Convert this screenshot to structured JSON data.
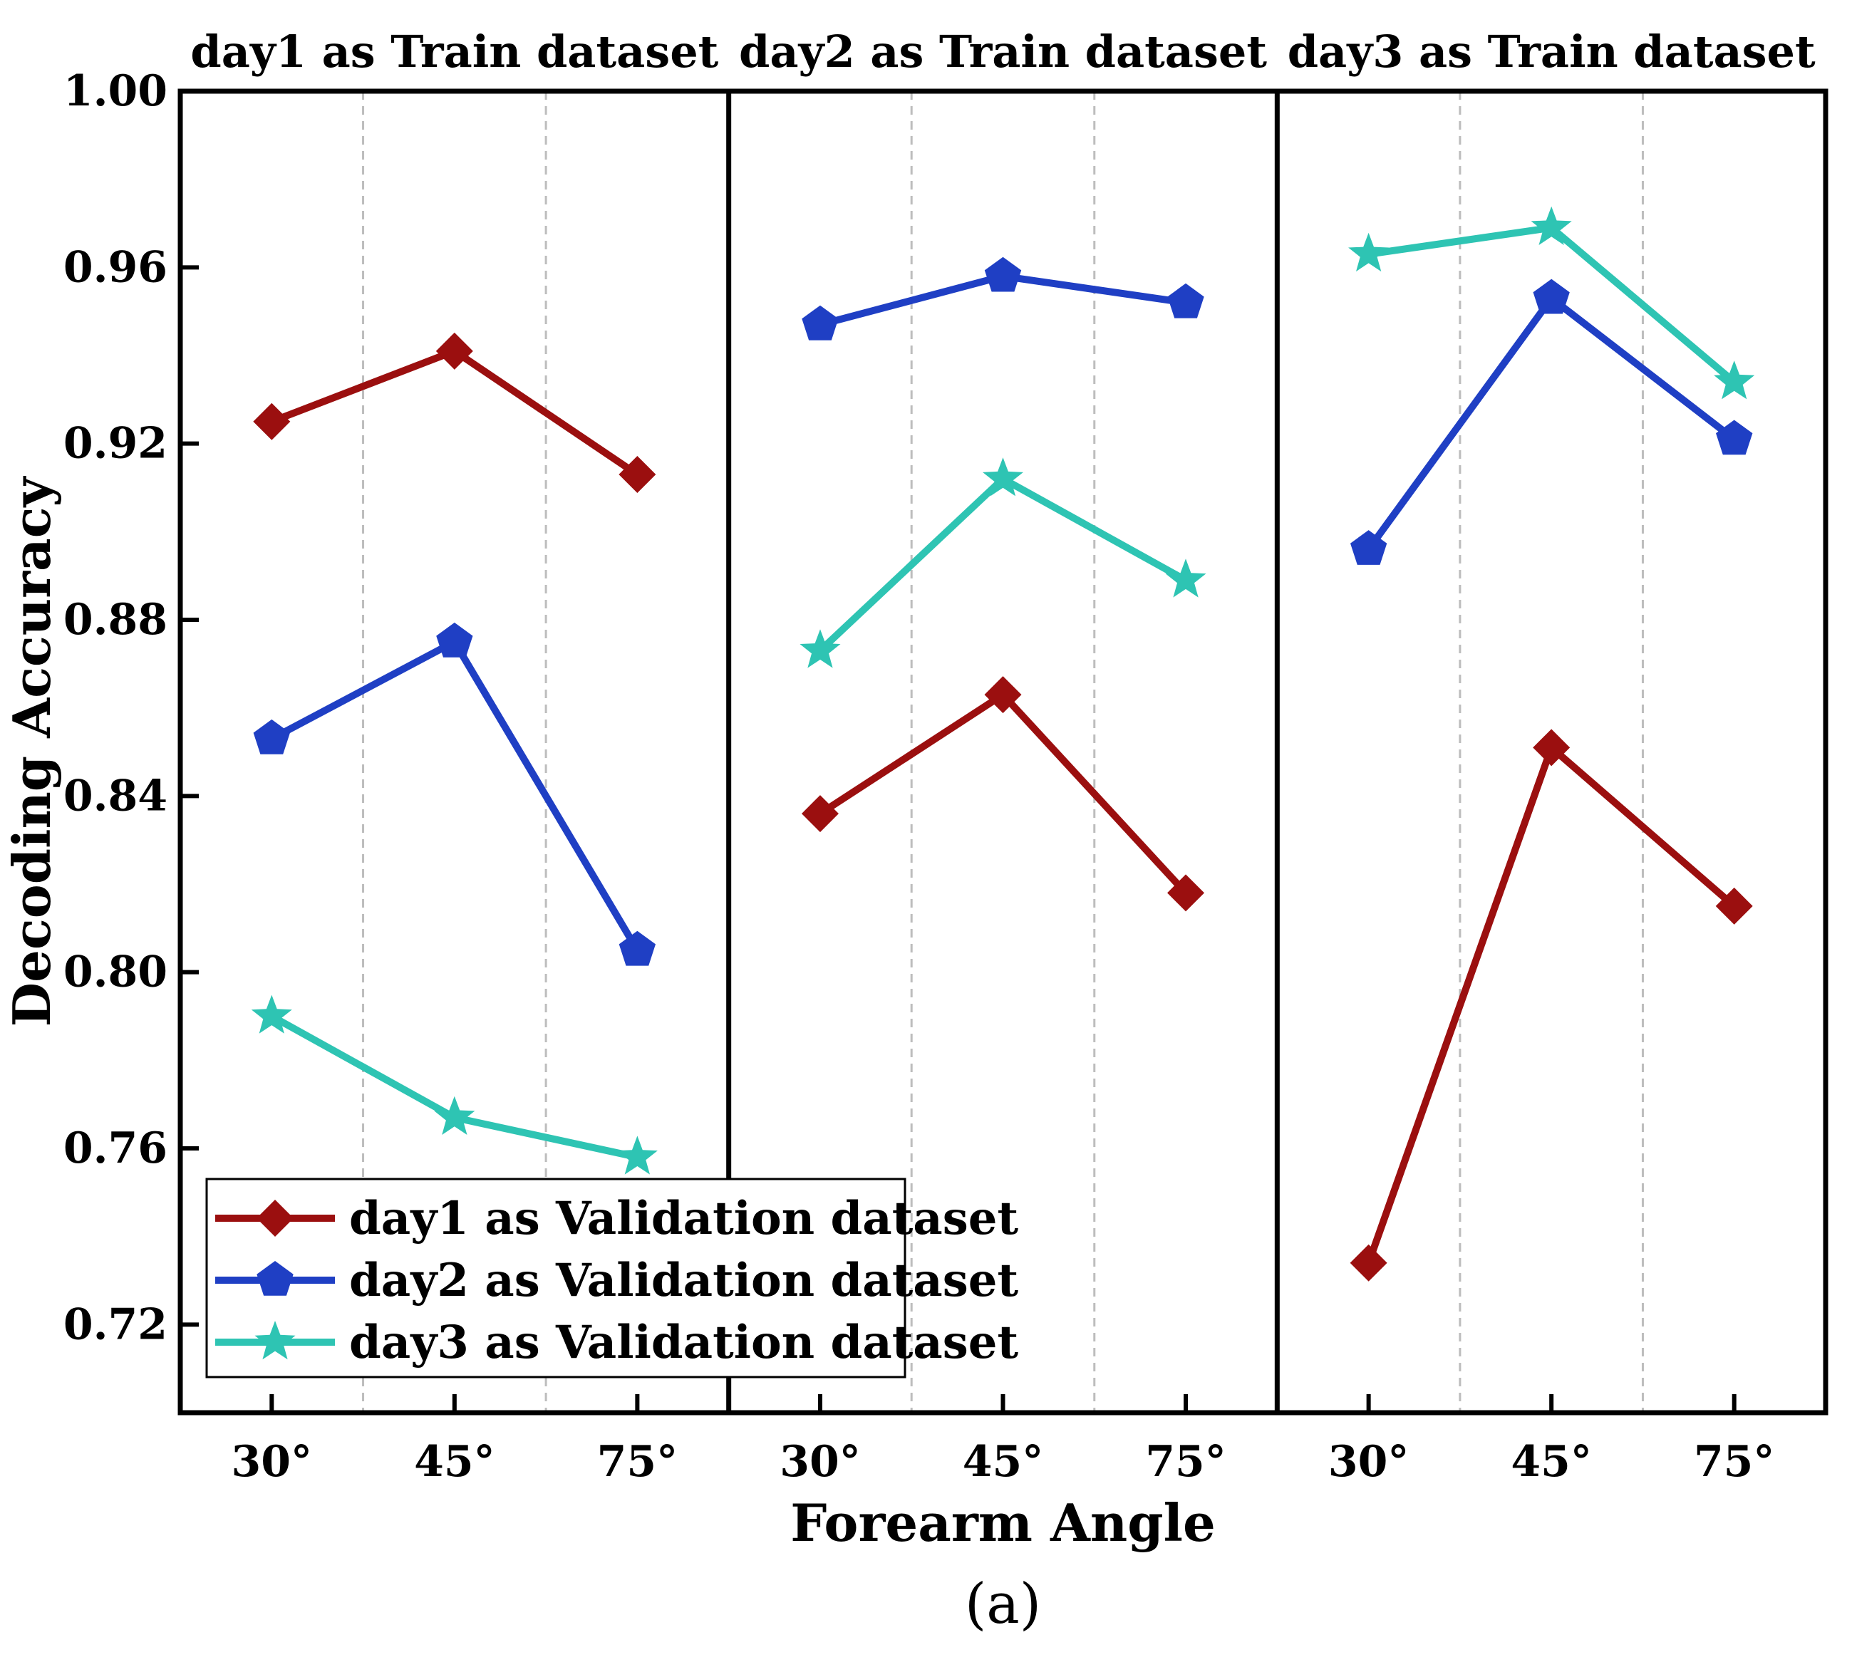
{
  "chart_data": {
    "type": "line",
    "caption": "(a)",
    "xlabel": "Forearm Angle",
    "ylabel": "Decoding Accuracy",
    "ylim": [
      0.7,
      1.0
    ],
    "yticks": [
      "0.72",
      "0.76",
      "0.80",
      "0.84",
      "0.88",
      "0.92",
      "0.96",
      "1.00"
    ],
    "categories": [
      "30°",
      "45°",
      "75°"
    ],
    "grid": "vertical dashed lines between categories",
    "legend_position": "bottom-left",
    "series_styles": [
      {
        "name": "day1 as Validation dataset",
        "color": "#9b0f0f",
        "marker": "diamond"
      },
      {
        "name": "day2 as Validation dataset",
        "color": "#1f3fc4",
        "marker": "pentagon"
      },
      {
        "name": "day3 as Validation dataset",
        "color": "#2ec4b3",
        "marker": "star"
      }
    ],
    "panels": [
      {
        "title": "day1 as Train dataset",
        "series": [
          {
            "name": "day1 as Validation dataset",
            "values": [
              0.925,
              0.941,
              0.913
            ]
          },
          {
            "name": "day2 as Validation dataset",
            "values": [
              0.853,
              0.875,
              0.805
            ]
          },
          {
            "name": "day3 as Validation dataset",
            "values": [
              0.79,
              0.767,
              0.758
            ]
          }
        ]
      },
      {
        "title": "day2 as Train dataset",
        "series": [
          {
            "name": "day1 as Validation dataset",
            "values": [
              0.836,
              0.863,
              0.818
            ]
          },
          {
            "name": "day2 as Validation dataset",
            "values": [
              0.947,
              0.958,
              0.952
            ]
          },
          {
            "name": "day3 as Validation dataset",
            "values": [
              0.873,
              0.912,
              0.889
            ]
          }
        ]
      },
      {
        "title": "day3 as Train dataset",
        "series": [
          {
            "name": "day1 as Validation dataset",
            "values": [
              0.734,
              0.851,
              0.815
            ]
          },
          {
            "name": "day2 as Validation dataset",
            "values": [
              0.896,
              0.953,
              0.921
            ]
          },
          {
            "name": "day3 as Validation dataset",
            "values": [
              0.963,
              0.969,
              0.934
            ]
          }
        ]
      }
    ]
  }
}
